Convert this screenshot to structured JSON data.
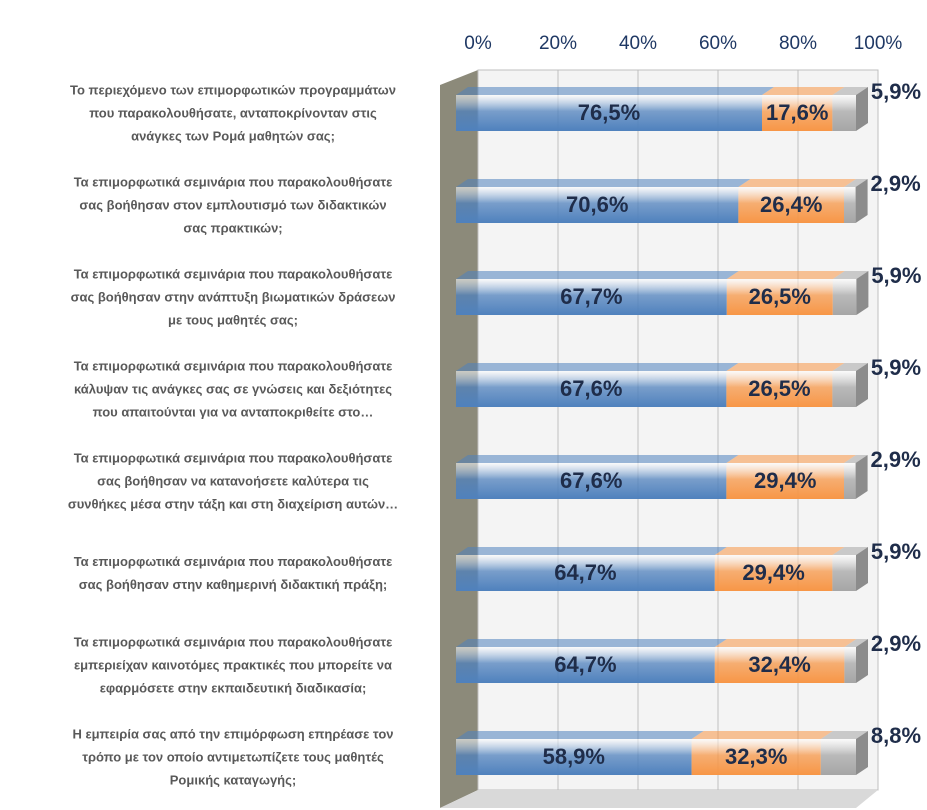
{
  "chart_data": {
    "type": "bar",
    "orientation": "horizontal",
    "stacked": true,
    "categories": [
      "Το περιεχόμενο των επιμορφωτικών προγραμμάτων\nπου παρακολουθήσατε, ανταποκρίνονταν στις\nανάγκες των Ρομά μαθητών σας;",
      "Τα επιμορφωτικά σεμινάρια που παρακολουθήσατε\nσας βοήθησαν στον εμπλουτισμό των διδακτικών\nσας πρακτικών;",
      "Τα επιμορφωτικά σεμινάρια που παρακολουθήσατε\nσας βοήθησαν στην ανάπτυξη βιωματικών δράσεων\nμε τους μαθητές σας;",
      "Τα επιμορφωτικά σεμινάρια που παρακολουθήσατε\nκάλυψαν τις ανάγκες σας σε γνώσεις και δεξιότητες\nπου απαιτούνται για να ανταποκριθείτε στο…",
      "Τα επιμορφωτικά σεμινάρια που παρακολουθήσατε\nσας βοήθησαν να κατανοήσετε καλύτερα τις\nσυνθήκες μέσα στην τάξη και στη διαχείριση αυτών…",
      "Τα επιμορφωτικά σεμινάρια που παρακολουθήσατε\nσας βοήθησαν στην καθημερινή διδακτική πράξη;",
      "Τα επιμορφωτικά σεμινάρια που παρακολουθήσατε\nεμπεριείχαν καινοτόμες πρακτικές που μπορείτε να\nεφαρμόσετε στην εκπαιδευτική διαδικασία;",
      "Η εμπειρία σας από την επιμόρφωση επηρέασε τον\nτρόπο με τον οποίο αντιμετωπίζετε τους μαθητές\nΡομικής καταγωγής;"
    ],
    "series": [
      {
        "color": "#4f81bd",
        "values": [
          76.5,
          70.6,
          67.7,
          67.6,
          67.6,
          64.7,
          64.7,
          58.9
        ],
        "value_labels": [
          "76,5%",
          "70,6%",
          "67,7%",
          "67,6%",
          "67,6%",
          "64,7%",
          "64,7%",
          "58,9%"
        ]
      },
      {
        "color": "#f79646",
        "values": [
          17.6,
          26.4,
          26.5,
          26.5,
          29.4,
          29.4,
          32.4,
          32.3
        ],
        "value_labels": [
          "17,6%",
          "26,4%",
          "26,5%",
          "26,5%",
          "29,4%",
          "29,4%",
          "32,4%",
          "32,3%"
        ]
      },
      {
        "color": "#a6a6a6",
        "values": [
          5.9,
          2.9,
          5.9,
          5.9,
          2.9,
          5.9,
          2.9,
          8.8
        ],
        "value_labels": [
          "5,9%",
          "2,9%",
          "5,9%",
          "5,9%",
          "2,9%",
          "5,9%",
          "2,9%",
          "8,8%"
        ]
      }
    ],
    "xlim": [
      0,
      100
    ],
    "xticks": [
      {
        "value": 0,
        "label": "0%"
      },
      {
        "value": 20,
        "label": "20%"
      },
      {
        "value": 40,
        "label": "40%"
      },
      {
        "value": 60,
        "label": "60%"
      },
      {
        "value": 80,
        "label": "80%"
      },
      {
        "value": 100,
        "label": "100%"
      }
    ],
    "grid": true
  }
}
